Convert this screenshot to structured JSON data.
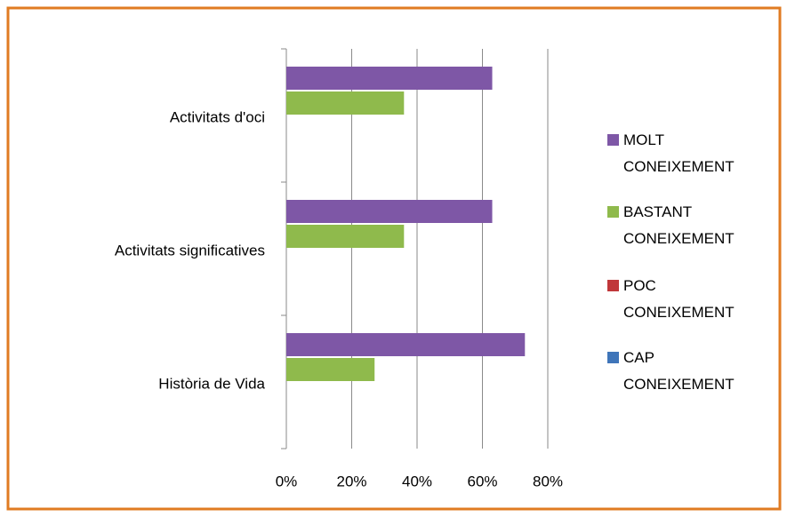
{
  "chart_data": {
    "type": "bar",
    "orientation": "horizontal",
    "categories": [
      "Activitats d'oci",
      "Activitats significatives",
      "Història de Vida"
    ],
    "series": [
      {
        "name": "MOLT CONEIXEMENT",
        "color": "#7e57a6",
        "values": [
          63,
          63,
          73
        ]
      },
      {
        "name": "BASTANT CONEIXEMENT",
        "color": "#8fba4c",
        "values": [
          36,
          36,
          27
        ]
      },
      {
        "name": "POC CONEIXEMENT",
        "color": "#c0373a",
        "values": [
          0,
          0,
          0
        ]
      },
      {
        "name": "CAP CONEIXEMENT",
        "color": "#3f75b9",
        "values": [
          0,
          0,
          0
        ]
      }
    ],
    "xlim": [
      0,
      80
    ],
    "xticks": [
      {
        "value": 0,
        "label": "0%"
      },
      {
        "value": 20,
        "label": "20%"
      },
      {
        "value": 40,
        "label": "40%"
      },
      {
        "value": 60,
        "label": "60%"
      },
      {
        "value": 80,
        "label": "80%"
      }
    ],
    "grid": true,
    "legend": "right"
  }
}
